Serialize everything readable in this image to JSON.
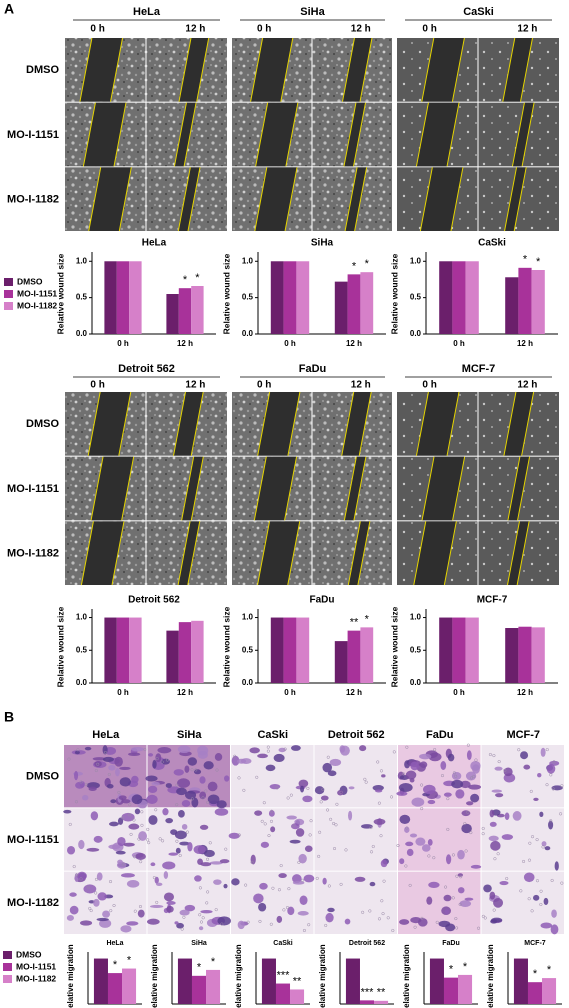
{
  "panel_labels": [
    "A",
    "B"
  ],
  "wound_assay": {
    "cell_lines": [
      "HeLa",
      "SiHa",
      "CaSki",
      "Detroit 562",
      "FaDu",
      "MCF-7"
    ],
    "time_points": [
      "0 h",
      "12 h"
    ],
    "treatments": [
      "DMSO",
      "MO-I-1151",
      "MO-I-1182"
    ]
  },
  "migration_assay": {
    "cell_lines": [
      "HeLa",
      "SiHa",
      "CaSki",
      "Detroit 562",
      "FaDu",
      "MCF-7"
    ],
    "treatments": [
      "DMSO",
      "MO-I-1151",
      "MO-I-1182"
    ]
  },
  "chart_data": [
    {
      "type": "bar",
      "title": "HeLa",
      "y_label": "Relative wound size",
      "categories": [
        "0 h",
        "12 h"
      ],
      "ylim": [
        0,
        1.1
      ],
      "yticks": [
        {
          "value": 0,
          "label": "0.0"
        },
        {
          "value": 0.5,
          "label": "0.5"
        },
        {
          "value": 1,
          "label": "1.0"
        }
      ],
      "series": [
        {
          "name": "DMSO",
          "color": "#6b1f6b",
          "values": [
            1.0,
            0.55
          ],
          "annotations": [
            null,
            null
          ]
        },
        {
          "name": "MO-I-1151",
          "color": "#a8329a",
          "values": [
            1.0,
            0.63
          ],
          "annotations": [
            null,
            "*"
          ]
        },
        {
          "name": "MO-I-1182",
          "color": "#d680c9",
          "values": [
            1.0,
            0.66
          ],
          "annotations": [
            null,
            "*"
          ]
        }
      ]
    },
    {
      "type": "bar",
      "title": "SiHa",
      "y_label": "Relative wound size",
      "categories": [
        "0 h",
        "12 h"
      ],
      "ylim": [
        0,
        1.1
      ],
      "yticks": [
        {
          "value": 0,
          "label": "0.0"
        },
        {
          "value": 0.5,
          "label": "0.5"
        },
        {
          "value": 1,
          "label": "1.0"
        }
      ],
      "series": [
        {
          "name": "DMSO",
          "color": "#6b1f6b",
          "values": [
            1.0,
            0.72
          ],
          "annotations": [
            null,
            null
          ]
        },
        {
          "name": "MO-I-1151",
          "color": "#a8329a",
          "values": [
            1.0,
            0.82
          ],
          "annotations": [
            null,
            "*"
          ]
        },
        {
          "name": "MO-I-1182",
          "color": "#d680c9",
          "values": [
            1.0,
            0.85
          ],
          "annotations": [
            null,
            "*"
          ]
        }
      ]
    },
    {
      "type": "bar",
      "title": "CaSki",
      "y_label": "Relative wound size",
      "categories": [
        "0 h",
        "12 h"
      ],
      "ylim": [
        0,
        1.1
      ],
      "yticks": [
        {
          "value": 0,
          "label": "0.0"
        },
        {
          "value": 0.5,
          "label": "0.5"
        },
        {
          "value": 1,
          "label": "1.0"
        }
      ],
      "series": [
        {
          "name": "DMSO",
          "color": "#6b1f6b",
          "values": [
            1.0,
            0.78
          ],
          "annotations": [
            null,
            null
          ]
        },
        {
          "name": "MO-I-1151",
          "color": "#a8329a",
          "values": [
            1.0,
            0.91
          ],
          "annotations": [
            null,
            "*"
          ]
        },
        {
          "name": "MO-I-1182",
          "color": "#d680c9",
          "values": [
            1.0,
            0.88
          ],
          "annotations": [
            null,
            "*"
          ]
        }
      ]
    },
    {
      "type": "bar",
      "title": "Detroit 562",
      "y_label": "Relative wound size",
      "categories": [
        "0 h",
        "12 h"
      ],
      "ylim": [
        0,
        1.1
      ],
      "yticks": [
        {
          "value": 0,
          "label": "0.0"
        },
        {
          "value": 0.5,
          "label": "0.5"
        },
        {
          "value": 1,
          "label": "1.0"
        }
      ],
      "series": [
        {
          "name": "DMSO",
          "color": "#6b1f6b",
          "values": [
            1.0,
            0.8
          ],
          "annotations": [
            null,
            null
          ]
        },
        {
          "name": "MO-I-1151",
          "color": "#a8329a",
          "values": [
            1.0,
            0.93
          ],
          "annotations": [
            null,
            null
          ]
        },
        {
          "name": "MO-I-1182",
          "color": "#d680c9",
          "values": [
            1.0,
            0.95
          ],
          "annotations": [
            null,
            null
          ]
        }
      ]
    },
    {
      "type": "bar",
      "title": "FaDu",
      "y_label": "Relative wound size",
      "categories": [
        "0 h",
        "12 h"
      ],
      "ylim": [
        0,
        1.1
      ],
      "yticks": [
        {
          "value": 0,
          "label": "0.0"
        },
        {
          "value": 0.5,
          "label": "0.5"
        },
        {
          "value": 1,
          "label": "1.0"
        }
      ],
      "series": [
        {
          "name": "DMSO",
          "color": "#6b1f6b",
          "values": [
            1.0,
            0.64
          ],
          "annotations": [
            null,
            null
          ]
        },
        {
          "name": "MO-I-1151",
          "color": "#a8329a",
          "values": [
            1.0,
            0.8
          ],
          "annotations": [
            null,
            "**"
          ]
        },
        {
          "name": "MO-I-1182",
          "color": "#d680c9",
          "values": [
            1.0,
            0.85
          ],
          "annotations": [
            null,
            "*"
          ]
        }
      ]
    },
    {
      "type": "bar",
      "title": "MCF-7",
      "y_label": "Relative wound size",
      "categories": [
        "0 h",
        "12 h"
      ],
      "ylim": [
        0,
        1.1
      ],
      "yticks": [
        {
          "value": 0,
          "label": "0.0"
        },
        {
          "value": 0.5,
          "label": "0.5"
        },
        {
          "value": 1,
          "label": "1.0"
        }
      ],
      "series": [
        {
          "name": "DMSO",
          "color": "#6b1f6b",
          "values": [
            1.0,
            0.84
          ],
          "annotations": [
            null,
            null
          ]
        },
        {
          "name": "MO-I-1151",
          "color": "#a8329a",
          "values": [
            1.0,
            0.86
          ],
          "annotations": [
            null,
            null
          ]
        },
        {
          "name": "MO-I-1182",
          "color": "#d680c9",
          "values": [
            1.0,
            0.85
          ],
          "annotations": [
            null,
            null
          ]
        }
      ]
    },
    {
      "type": "bar",
      "title": "HeLa",
      "y_label": "Relative migration",
      "ylim": [
        0,
        1.1
      ],
      "series": [
        {
          "name": "DMSO",
          "color": "#6b1f6b",
          "values": [
            1.0
          ],
          "annotations": [
            null
          ]
        },
        {
          "name": "MO-I-1151",
          "color": "#a8329a",
          "values": [
            0.68
          ],
          "annotations": [
            "*"
          ]
        },
        {
          "name": "MO-I-1182",
          "color": "#d680c9",
          "values": [
            0.78
          ],
          "annotations": [
            "*"
          ]
        }
      ]
    },
    {
      "type": "bar",
      "title": "SiHa",
      "y_label": "Relative migration",
      "ylim": [
        0,
        1.1
      ],
      "series": [
        {
          "name": "DMSO",
          "color": "#6b1f6b",
          "values": [
            1.0
          ],
          "annotations": [
            null
          ]
        },
        {
          "name": "MO-I-1151",
          "color": "#a8329a",
          "values": [
            0.62
          ],
          "annotations": [
            "*"
          ]
        },
        {
          "name": "MO-I-1182",
          "color": "#d680c9",
          "values": [
            0.75
          ],
          "annotations": [
            "*"
          ]
        }
      ]
    },
    {
      "type": "bar",
      "title": "CaSki",
      "y_label": "Relative migration",
      "ylim": [
        0,
        1.1
      ],
      "series": [
        {
          "name": "DMSO",
          "color": "#6b1f6b",
          "values": [
            1.0
          ],
          "annotations": [
            null
          ]
        },
        {
          "name": "MO-I-1151",
          "color": "#a8329a",
          "values": [
            0.45
          ],
          "annotations": [
            "***"
          ]
        },
        {
          "name": "MO-I-1182",
          "color": "#d680c9",
          "values": [
            0.32
          ],
          "annotations": [
            "**"
          ]
        }
      ]
    },
    {
      "type": "bar",
      "title": "Detroit 562",
      "y_label": "Relative migration",
      "ylim": [
        0,
        1.1
      ],
      "series": [
        {
          "name": "DMSO",
          "color": "#6b1f6b",
          "values": [
            1.0
          ],
          "annotations": [
            null
          ]
        },
        {
          "name": "MO-I-1151",
          "color": "#a8329a",
          "values": [
            0.08
          ],
          "annotations": [
            "***"
          ]
        },
        {
          "name": "MO-I-1182",
          "color": "#d680c9",
          "values": [
            0.07
          ],
          "annotations": [
            "**"
          ]
        }
      ]
    },
    {
      "type": "bar",
      "title": "FaDu",
      "y_label": "Relative migration",
      "ylim": [
        0,
        1.1
      ],
      "series": [
        {
          "name": "DMSO",
          "color": "#6b1f6b",
          "values": [
            1.0
          ],
          "annotations": [
            null
          ]
        },
        {
          "name": "MO-I-1151",
          "color": "#a8329a",
          "values": [
            0.58
          ],
          "annotations": [
            "*"
          ]
        },
        {
          "name": "MO-I-1182",
          "color": "#d680c9",
          "values": [
            0.64
          ],
          "annotations": [
            "*"
          ]
        }
      ]
    },
    {
      "type": "bar",
      "title": "MCF-7",
      "y_label": "Relative migration",
      "ylim": [
        0,
        1.1
      ],
      "series": [
        {
          "name": "DMSO",
          "color": "#6b1f6b",
          "values": [
            1.0
          ],
          "annotations": [
            null
          ]
        },
        {
          "name": "MO-I-1151",
          "color": "#a8329a",
          "values": [
            0.48
          ],
          "annotations": [
            "*"
          ]
        },
        {
          "name": "MO-I-1182",
          "color": "#d680c9",
          "values": [
            0.57
          ],
          "annotations": [
            "*"
          ]
        }
      ]
    }
  ]
}
